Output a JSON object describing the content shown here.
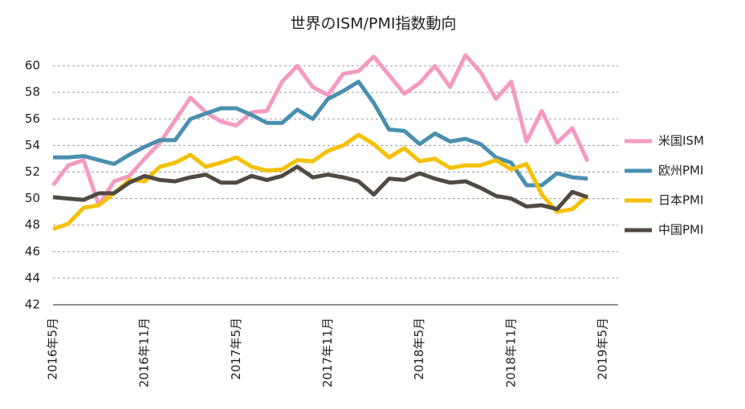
{
  "chart_data": {
    "type": "line",
    "title": "世界のISM/PMI指数動向",
    "categories": [
      "2016年5月",
      null,
      null,
      null,
      null,
      null,
      "2016年11月",
      null,
      null,
      null,
      null,
      null,
      "2017年5月",
      null,
      null,
      null,
      null,
      null,
      "2017年11月",
      null,
      null,
      null,
      null,
      null,
      "2018年5月",
      null,
      null,
      null,
      null,
      null,
      "2018年11月",
      null,
      null,
      null,
      null,
      null,
      "2019年5月"
    ],
    "series": [
      {
        "name": "米国ISM",
        "color": "#f49ac1",
        "values": [
          51.0,
          52.5,
          52.9,
          49.5,
          51.3,
          51.7,
          53.0,
          54.2,
          55.9,
          57.6,
          56.5,
          55.8,
          55.5,
          56.5,
          56.6,
          58.8,
          60.0,
          58.4,
          57.8,
          59.4,
          59.6,
          60.7,
          59.3,
          57.9,
          58.7,
          60.0,
          58.4,
          60.8,
          59.5,
          57.5,
          58.8,
          54.3,
          56.6,
          54.2,
          55.3,
          52.8,
          null
        ]
      },
      {
        "name": "欧州PMI",
        "color": "#4a8fb0",
        "values": [
          53.1,
          53.1,
          53.2,
          52.9,
          52.6,
          53.3,
          53.9,
          54.4,
          54.4,
          56.0,
          56.4,
          56.8,
          56.8,
          56.3,
          55.7,
          55.7,
          56.7,
          56.0,
          57.5,
          58.1,
          58.8,
          57.2,
          55.2,
          55.1,
          54.1,
          54.9,
          54.3,
          54.5,
          54.1,
          53.1,
          52.7,
          51.0,
          51.0,
          51.9,
          51.6,
          51.5,
          null
        ]
      },
      {
        "name": "日本PMI",
        "color": "#f5c000",
        "values": [
          47.7,
          48.1,
          49.3,
          49.5,
          50.4,
          51.4,
          51.3,
          52.4,
          52.7,
          53.3,
          52.4,
          52.7,
          53.1,
          52.4,
          52.1,
          52.2,
          52.9,
          52.8,
          53.6,
          54.0,
          54.8,
          54.1,
          53.1,
          53.8,
          52.8,
          53.0,
          52.3,
          52.5,
          52.5,
          52.9,
          52.2,
          52.6,
          50.3,
          49.0,
          49.2,
          50.2,
          null
        ]
      },
      {
        "name": "中国PMI",
        "color": "#514a43",
        "values": [
          50.1,
          50.0,
          49.9,
          50.4,
          50.4,
          51.2,
          51.7,
          51.4,
          51.3,
          51.6,
          51.8,
          51.2,
          51.2,
          51.7,
          51.4,
          51.7,
          52.4,
          51.6,
          51.8,
          51.6,
          51.3,
          50.3,
          51.5,
          51.4,
          51.9,
          51.5,
          51.2,
          51.3,
          50.8,
          50.2,
          50.0,
          49.4,
          49.5,
          49.2,
          50.5,
          50.1,
          null
        ]
      }
    ],
    "ylim": [
      42,
      61
    ],
    "yticks": [
      42,
      44,
      46,
      48,
      50,
      52,
      54,
      56,
      58,
      60
    ],
    "grid": true,
    "legend": "right"
  }
}
